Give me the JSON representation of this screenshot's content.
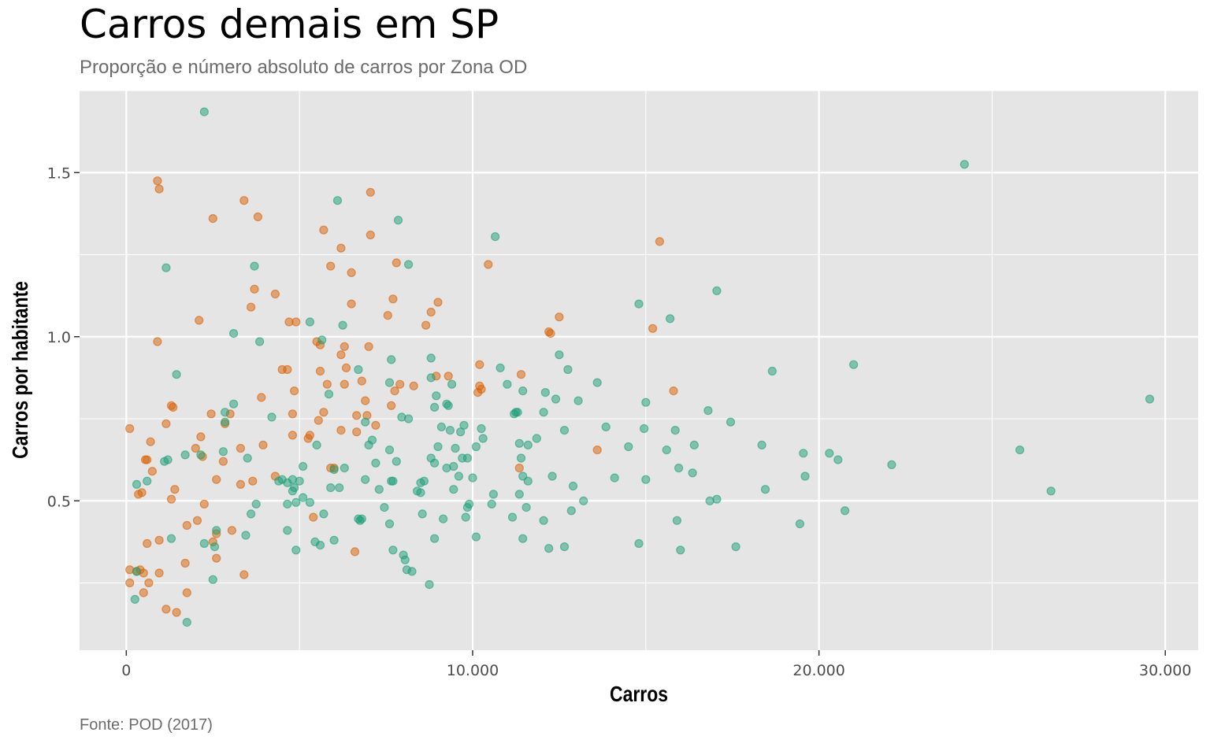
{
  "title": "Carros demais em SP",
  "subtitle": "Proporção e número absoluto de carros por Zona OD",
  "caption": "Fonte: POD (2017)",
  "colors": {
    "panel_background": "#e5e5e5",
    "grid": "#ffffff",
    "series_orange": "#d95f02",
    "series_green": "#1b9e77"
  },
  "chart_data": {
    "type": "scatter",
    "xlabel": "Carros",
    "ylabel": "Carros por habitante",
    "xlim": [
      -1350,
      30950
    ],
    "ylim": [
      0.045,
      1.75
    ],
    "xticks": [
      0,
      10000,
      20000,
      30000
    ],
    "xtick_labels": [
      "0",
      "10.000",
      "20.000",
      "30.000"
    ],
    "yticks": [
      0.5,
      1.0,
      1.5
    ],
    "ytick_labels": [
      "0.5",
      "1.0",
      "1.5"
    ],
    "grid": true,
    "legend": "none",
    "series": [
      {
        "color": "#d95f02",
        "points": [
          [
            900,
            1.475
          ],
          [
            950,
            1.45
          ],
          [
            3400,
            1.415
          ],
          [
            7050,
            1.44
          ],
          [
            2500,
            1.36
          ],
          [
            3800,
            1.365
          ],
          [
            5700,
            1.325
          ],
          [
            7050,
            1.31
          ],
          [
            6200,
            1.27
          ],
          [
            10450,
            1.22
          ],
          [
            15400,
            1.29
          ],
          [
            5900,
            1.215
          ],
          [
            7800,
            1.225
          ],
          [
            6500,
            1.195
          ],
          [
            3700,
            1.145
          ],
          [
            4300,
            1.13
          ],
          [
            3600,
            1.09
          ],
          [
            6500,
            1.1
          ],
          [
            7700,
            1.115
          ],
          [
            7550,
            1.065
          ],
          [
            9000,
            1.105
          ],
          [
            8800,
            1.075
          ],
          [
            12500,
            1.06
          ],
          [
            2100,
            1.05
          ],
          [
            4700,
            1.045
          ],
          [
            4900,
            1.045
          ],
          [
            8650,
            1.035
          ],
          [
            15200,
            1.025
          ],
          [
            12200,
            1.015
          ],
          [
            12250,
            1.01
          ],
          [
            900,
            0.985
          ],
          [
            5500,
            0.985
          ],
          [
            5600,
            0.975
          ],
          [
            6300,
            0.97
          ],
          [
            7000,
            0.97
          ],
          [
            6200,
            0.945
          ],
          [
            4500,
            0.9
          ],
          [
            4650,
            0.9
          ],
          [
            5600,
            0.895
          ],
          [
            6350,
            0.905
          ],
          [
            9300,
            0.88
          ],
          [
            8950,
            0.88
          ],
          [
            10200,
            0.915
          ],
          [
            11400,
            0.885
          ],
          [
            6800,
            0.865
          ],
          [
            5800,
            0.855
          ],
          [
            6300,
            0.855
          ],
          [
            8300,
            0.85
          ],
          [
            7900,
            0.855
          ],
          [
            7750,
            0.835
          ],
          [
            10150,
            0.83
          ],
          [
            10250,
            0.84
          ],
          [
            10200,
            0.85
          ],
          [
            15800,
            0.835
          ],
          [
            4850,
            0.835
          ],
          [
            3900,
            0.815
          ],
          [
            6900,
            0.805
          ],
          [
            1300,
            0.79
          ],
          [
            1350,
            0.785
          ],
          [
            7650,
            0.79
          ],
          [
            3000,
            0.765
          ],
          [
            2450,
            0.765
          ],
          [
            4800,
            0.765
          ],
          [
            5700,
            0.77
          ],
          [
            6650,
            0.76
          ],
          [
            6950,
            0.76
          ],
          [
            1150,
            0.735
          ],
          [
            2850,
            0.735
          ],
          [
            5550,
            0.745
          ],
          [
            7200,
            0.73
          ],
          [
            100,
            0.72
          ],
          [
            6200,
            0.715
          ],
          [
            6650,
            0.71
          ],
          [
            2150,
            0.695
          ],
          [
            5300,
            0.7
          ],
          [
            4800,
            0.7
          ],
          [
            5250,
            0.69
          ],
          [
            700,
            0.68
          ],
          [
            3950,
            0.67
          ],
          [
            3300,
            0.66
          ],
          [
            2000,
            0.66
          ],
          [
            13600,
            0.655
          ],
          [
            2200,
            0.635
          ],
          [
            550,
            0.625
          ],
          [
            2800,
            0.62
          ],
          [
            600,
            0.625
          ],
          [
            750,
            0.59
          ],
          [
            6000,
            0.6
          ],
          [
            5900,
            0.6
          ],
          [
            11350,
            0.6
          ],
          [
            4300,
            0.575
          ],
          [
            2600,
            0.565
          ],
          [
            3650,
            0.56
          ],
          [
            3300,
            0.55
          ],
          [
            1400,
            0.535
          ],
          [
            450,
            0.525
          ],
          [
            350,
            0.52
          ],
          [
            1300,
            0.505
          ],
          [
            2250,
            0.49
          ],
          [
            5400,
            0.45
          ],
          [
            2050,
            0.44
          ],
          [
            1750,
            0.425
          ],
          [
            3050,
            0.41
          ],
          [
            2600,
            0.4
          ],
          [
            2500,
            0.375
          ],
          [
            950,
            0.38
          ],
          [
            600,
            0.37
          ],
          [
            6600,
            0.345
          ],
          [
            1700,
            0.31
          ],
          [
            2600,
            0.325
          ],
          [
            3400,
            0.275
          ],
          [
            100,
            0.29
          ],
          [
            400,
            0.29
          ],
          [
            300,
            0.285
          ],
          [
            500,
            0.28
          ],
          [
            950,
            0.28
          ],
          [
            100,
            0.25
          ],
          [
            650,
            0.25
          ],
          [
            500,
            0.22
          ],
          [
            1750,
            0.22
          ],
          [
            1150,
            0.17
          ],
          [
            1450,
            0.16
          ]
        ]
      },
      {
        "color": "#1b9e77",
        "points": [
          [
            2250,
            1.685
          ],
          [
            24200,
            1.525
          ],
          [
            6100,
            1.415
          ],
          [
            7850,
            1.355
          ],
          [
            10650,
            1.305
          ],
          [
            1150,
            1.21
          ],
          [
            3700,
            1.215
          ],
          [
            8150,
            1.22
          ],
          [
            17050,
            1.14
          ],
          [
            14800,
            1.1
          ],
          [
            15700,
            1.055
          ],
          [
            5300,
            1.045
          ],
          [
            6250,
            1.035
          ],
          [
            3100,
            1.01
          ],
          [
            3850,
            0.985
          ],
          [
            5650,
            0.99
          ],
          [
            8800,
            0.935
          ],
          [
            12500,
            0.945
          ],
          [
            7650,
            0.93
          ],
          [
            21000,
            0.915
          ],
          [
            10800,
            0.905
          ],
          [
            6700,
            0.9
          ],
          [
            12750,
            0.9
          ],
          [
            18650,
            0.895
          ],
          [
            1450,
            0.885
          ],
          [
            8800,
            0.875
          ],
          [
            7600,
            0.86
          ],
          [
            11000,
            0.855
          ],
          [
            9400,
            0.855
          ],
          [
            13600,
            0.86
          ],
          [
            11450,
            0.835
          ],
          [
            12100,
            0.83
          ],
          [
            5850,
            0.825
          ],
          [
            8950,
            0.82
          ],
          [
            12400,
            0.81
          ],
          [
            13050,
            0.805
          ],
          [
            3100,
            0.795
          ],
          [
            9300,
            0.79
          ],
          [
            9250,
            0.795
          ],
          [
            15000,
            0.8
          ],
          [
            29550,
            0.81
          ],
          [
            8900,
            0.785
          ],
          [
            11200,
            0.765
          ],
          [
            11300,
            0.77
          ],
          [
            11250,
            0.77
          ],
          [
            12050,
            0.77
          ],
          [
            16800,
            0.775
          ],
          [
            2850,
            0.77
          ],
          [
            4200,
            0.755
          ],
          [
            7950,
            0.755
          ],
          [
            8150,
            0.75
          ],
          [
            2850,
            0.74
          ],
          [
            6900,
            0.74
          ],
          [
            9100,
            0.725
          ],
          [
            9750,
            0.73
          ],
          [
            13850,
            0.725
          ],
          [
            17450,
            0.74
          ],
          [
            15850,
            0.715
          ],
          [
            14950,
            0.72
          ],
          [
            12650,
            0.715
          ],
          [
            10250,
            0.72
          ],
          [
            9350,
            0.715
          ],
          [
            9650,
            0.71
          ],
          [
            7100,
            0.685
          ],
          [
            10300,
            0.69
          ],
          [
            11850,
            0.69
          ],
          [
            5500,
            0.67
          ],
          [
            7000,
            0.67
          ],
          [
            9000,
            0.665
          ],
          [
            9500,
            0.66
          ],
          [
            10100,
            0.665
          ],
          [
            11350,
            0.675
          ],
          [
            11600,
            0.67
          ],
          [
            14500,
            0.665
          ],
          [
            16400,
            0.67
          ],
          [
            18350,
            0.67
          ],
          [
            25800,
            0.655
          ],
          [
            7600,
            0.655
          ],
          [
            15600,
            0.655
          ],
          [
            19550,
            0.645
          ],
          [
            20300,
            0.645
          ],
          [
            20550,
            0.625
          ],
          [
            22100,
            0.61
          ],
          [
            9700,
            0.63
          ],
          [
            9850,
            0.63
          ],
          [
            11400,
            0.63
          ],
          [
            3500,
            0.63
          ],
          [
            1200,
            0.625
          ],
          [
            1100,
            0.62
          ],
          [
            1700,
            0.64
          ],
          [
            2150,
            0.64
          ],
          [
            2800,
            0.65
          ],
          [
            7200,
            0.615
          ],
          [
            7800,
            0.62
          ],
          [
            8800,
            0.63
          ],
          [
            8900,
            0.615
          ],
          [
            9450,
            0.605
          ],
          [
            5100,
            0.605
          ],
          [
            6300,
            0.6
          ],
          [
            6000,
            0.595
          ],
          [
            9250,
            0.6
          ],
          [
            9600,
            0.575
          ],
          [
            10000,
            0.57
          ],
          [
            15950,
            0.6
          ],
          [
            16350,
            0.585
          ],
          [
            19600,
            0.575
          ],
          [
            12300,
            0.575
          ],
          [
            14100,
            0.57
          ],
          [
            15000,
            0.565
          ],
          [
            11450,
            0.575
          ],
          [
            11600,
            0.56
          ],
          [
            8500,
            0.555
          ],
          [
            7700,
            0.56
          ],
          [
            6900,
            0.565
          ],
          [
            6150,
            0.54
          ],
          [
            5900,
            0.54
          ],
          [
            5000,
            0.56
          ],
          [
            4800,
            0.565
          ],
          [
            4650,
            0.555
          ],
          [
            4500,
            0.565
          ],
          [
            4400,
            0.56
          ],
          [
            4800,
            0.53
          ],
          [
            4850,
            0.54
          ],
          [
            7300,
            0.535
          ],
          [
            7650,
            0.56
          ],
          [
            8600,
            0.56
          ],
          [
            8400,
            0.53
          ],
          [
            8500,
            0.525
          ],
          [
            9450,
            0.535
          ],
          [
            12900,
            0.545
          ],
          [
            10600,
            0.52
          ],
          [
            11350,
            0.52
          ],
          [
            13200,
            0.5
          ],
          [
            16850,
            0.5
          ],
          [
            17050,
            0.505
          ],
          [
            18450,
            0.535
          ],
          [
            26700,
            0.53
          ],
          [
            3750,
            0.49
          ],
          [
            4650,
            0.49
          ],
          [
            4900,
            0.495
          ],
          [
            5100,
            0.51
          ],
          [
            5300,
            0.495
          ],
          [
            7450,
            0.48
          ],
          [
            8550,
            0.46
          ],
          [
            9900,
            0.49
          ],
          [
            9850,
            0.48
          ],
          [
            10550,
            0.49
          ],
          [
            11550,
            0.48
          ],
          [
            12850,
            0.47
          ],
          [
            20750,
            0.47
          ],
          [
            3600,
            0.46
          ],
          [
            5700,
            0.46
          ],
          [
            9150,
            0.445
          ],
          [
            9800,
            0.45
          ],
          [
            11150,
            0.45
          ],
          [
            12050,
            0.44
          ],
          [
            15900,
            0.44
          ],
          [
            19450,
            0.43
          ],
          [
            6700,
            0.445
          ],
          [
            6800,
            0.445
          ],
          [
            6750,
            0.44
          ],
          [
            7600,
            0.43
          ],
          [
            4650,
            0.41
          ],
          [
            3450,
            0.395
          ],
          [
            2600,
            0.41
          ],
          [
            1300,
            0.385
          ],
          [
            5450,
            0.375
          ],
          [
            5600,
            0.365
          ],
          [
            6000,
            0.38
          ],
          [
            8900,
            0.385
          ],
          [
            10100,
            0.39
          ],
          [
            11450,
            0.385
          ],
          [
            12200,
            0.355
          ],
          [
            12650,
            0.36
          ],
          [
            14800,
            0.37
          ],
          [
            16000,
            0.35
          ],
          [
            17600,
            0.36
          ],
          [
            2250,
            0.37
          ],
          [
            2550,
            0.36
          ],
          [
            4900,
            0.35
          ],
          [
            7700,
            0.35
          ],
          [
            8000,
            0.335
          ],
          [
            8050,
            0.32
          ],
          [
            8100,
            0.29
          ],
          [
            8250,
            0.285
          ],
          [
            8750,
            0.245
          ],
          [
            300,
            0.285
          ],
          [
            2500,
            0.26
          ],
          [
            250,
            0.2
          ],
          [
            1750,
            0.13
          ],
          [
            300,
            0.55
          ],
          [
            600,
            0.56
          ]
        ]
      }
    ]
  }
}
